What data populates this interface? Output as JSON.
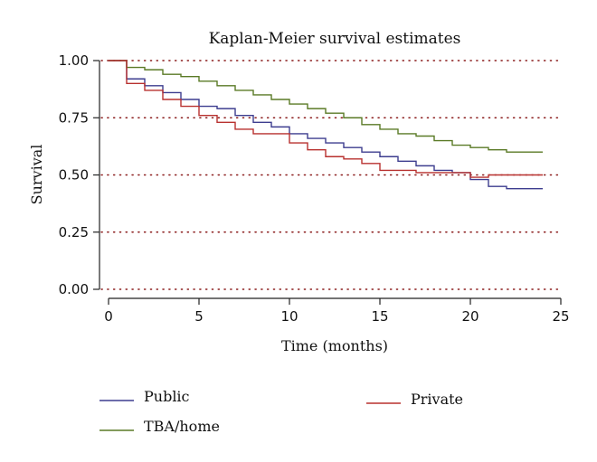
{
  "chart_data": {
    "type": "line",
    "subtype": "step",
    "title": "Kaplan-Meier survival estimates",
    "xlabel": "Time (months)",
    "ylabel": "Survival",
    "xlim": [
      0,
      25
    ],
    "ylim": [
      0,
      1
    ],
    "xticks": [
      0,
      5,
      10,
      15,
      20,
      25
    ],
    "yticks": [
      "0.00",
      "0.25",
      "0.50",
      "0.75",
      "1.00"
    ],
    "grid": "horizontal dotted",
    "legend_position": "bottom",
    "series": [
      {
        "name": "Public",
        "color": "#3d3d8f",
        "x": [
          0,
          1,
          2,
          3,
          4,
          5,
          6,
          7,
          8,
          9,
          10,
          11,
          12,
          13,
          14,
          15,
          16,
          17,
          18,
          19,
          20,
          21,
          22,
          23,
          24
        ],
        "y": [
          1.0,
          0.92,
          0.89,
          0.86,
          0.83,
          0.8,
          0.79,
          0.76,
          0.73,
          0.71,
          0.68,
          0.66,
          0.64,
          0.62,
          0.6,
          0.58,
          0.56,
          0.54,
          0.52,
          0.51,
          0.48,
          0.45,
          0.44,
          0.44,
          0.44
        ]
      },
      {
        "name": "TBA/home",
        "color": "#5a7a26",
        "x": [
          0,
          1,
          2,
          3,
          4,
          5,
          6,
          7,
          8,
          9,
          10,
          11,
          12,
          13,
          14,
          15,
          16,
          17,
          18,
          19,
          20,
          21,
          22,
          23,
          24
        ],
        "y": [
          1.0,
          0.97,
          0.96,
          0.94,
          0.93,
          0.91,
          0.89,
          0.87,
          0.85,
          0.83,
          0.81,
          0.79,
          0.77,
          0.75,
          0.72,
          0.7,
          0.68,
          0.67,
          0.65,
          0.63,
          0.62,
          0.61,
          0.6,
          0.6,
          0.6
        ]
      },
      {
        "name": "Private",
        "color": "#b8312f",
        "x": [
          0,
          1,
          2,
          3,
          4,
          5,
          6,
          7,
          8,
          9,
          10,
          11,
          12,
          13,
          14,
          15,
          16,
          17,
          18,
          19,
          20,
          21,
          22,
          23,
          24
        ],
        "y": [
          1.0,
          0.9,
          0.87,
          0.83,
          0.8,
          0.76,
          0.73,
          0.7,
          0.68,
          0.68,
          0.64,
          0.61,
          0.58,
          0.57,
          0.55,
          0.52,
          0.52,
          0.51,
          0.51,
          0.51,
          0.49,
          0.5,
          0.5,
          0.5,
          0.5
        ]
      }
    ],
    "legend": [
      {
        "name": "Public",
        "color": "#3d3d8f"
      },
      {
        "name": "TBA/home",
        "color": "#5a7a26"
      },
      {
        "name": "Private",
        "color": "#b8312f"
      }
    ]
  }
}
